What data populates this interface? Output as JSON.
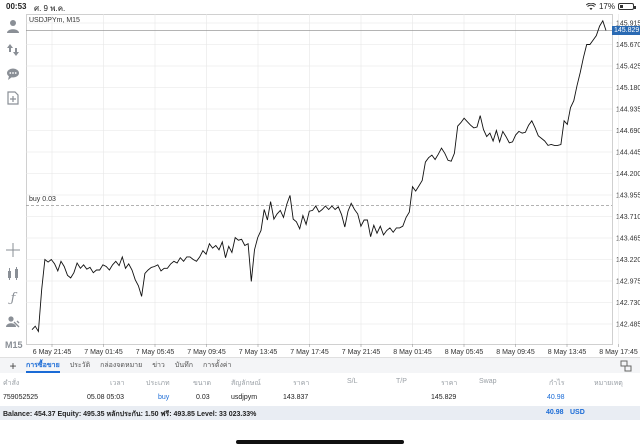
{
  "status_bar": {
    "time": "00:53",
    "date": "ศ. 9 พ.ค.",
    "battery": "17%"
  },
  "toolbar": {
    "icons": [
      "account-icon",
      "trade-icon",
      "chat-icon",
      "new-order-icon",
      "crosshair-icon",
      "indicators-icon",
      "function-icon",
      "objects-icon"
    ],
    "timeframe": "M15"
  },
  "chart": {
    "symbol": "USDJPYm, M15",
    "order_line_label": "buy 0.03",
    "current_price": "145.829",
    "price_ticks": [
      "145.915",
      "145.670",
      "145.425",
      "145.180",
      "144.935",
      "144.690",
      "144.445",
      "144.200",
      "143.955",
      "143.710",
      "143.465",
      "143.220",
      "142.975",
      "142.730",
      "142.485"
    ],
    "time_ticks": [
      "6 May 21:45",
      "7 May 01:45",
      "7 May 05:45",
      "7 May 09:45",
      "7 May 13:45",
      "7 May 17:45",
      "7 May 21:45",
      "8 May 01:45",
      "8 May 05:45",
      "8 May 09:45",
      "8 May 13:45",
      "8 May 17:45"
    ]
  },
  "chart_data": {
    "type": "line",
    "title": "USDJPYm, M15",
    "xlabel": "",
    "ylabel": "",
    "ylim": [
      142.3,
      146.0
    ],
    "grid": true,
    "order_level": 143.837,
    "current_level": 145.829,
    "series": [
      {
        "values": [
          142.42,
          142.46,
          142.4,
          142.88,
          143.22,
          143.19,
          143.22,
          143.17,
          143.09,
          143.2,
          143.14,
          143.04,
          143.01,
          143.07,
          143.18,
          143.12,
          143.16,
          143.11,
          143.13,
          143.07,
          143.1,
          143.1,
          143.16,
          143.14,
          143.1,
          143.16,
          143.2,
          143.15,
          143.25,
          143.12,
          143.17,
          143.1,
          142.99,
          142.92,
          142.8,
          143.06,
          143.1,
          143.13,
          143.14,
          143.16,
          143.09,
          143.12,
          143.12,
          143.17,
          143.2,
          143.18,
          143.24,
          143.2,
          143.25,
          143.25,
          143.22,
          143.2,
          143.25,
          143.32,
          143.28,
          143.4,
          143.35,
          143.38,
          143.33,
          143.42,
          143.24,
          143.37,
          143.3,
          143.47,
          143.44,
          143.45,
          143.38,
          143.4,
          142.97,
          143.33,
          143.47,
          143.55,
          143.79,
          143.67,
          143.88,
          143.68,
          143.74,
          143.78,
          143.7,
          143.85,
          143.95,
          143.68,
          143.65,
          143.57,
          143.72,
          143.62,
          143.77,
          143.78,
          143.83,
          143.76,
          143.79,
          143.83,
          143.79,
          143.83,
          143.79,
          143.82,
          143.73,
          143.59,
          143.77,
          143.86,
          143.79,
          143.74,
          143.6,
          143.67,
          143.67,
          143.48,
          143.61,
          143.52,
          143.6,
          143.5,
          143.55,
          143.58,
          143.53,
          143.58,
          143.58,
          143.6,
          143.7,
          143.76,
          144.05,
          144.0,
          144.06,
          144.12,
          144.33,
          144.38,
          144.41,
          144.36,
          144.42,
          144.49,
          144.43,
          144.35,
          144.34,
          144.43,
          144.74,
          144.78,
          144.83,
          144.79,
          144.75,
          144.72,
          144.73,
          144.86,
          144.7,
          144.62,
          144.66,
          144.57,
          144.69,
          144.56,
          144.68,
          144.62,
          144.55,
          144.56,
          144.64,
          144.68,
          144.66,
          144.67,
          144.75,
          144.8,
          144.72,
          144.63,
          144.6,
          144.57,
          144.52,
          144.53,
          144.52,
          144.52,
          144.53,
          144.8,
          144.76,
          144.95,
          145.03,
          145.2,
          145.35,
          145.52,
          145.67,
          145.67,
          145.72,
          145.77,
          145.88,
          145.94,
          145.83
        ]
      }
    ]
  },
  "tabs": {
    "items": [
      "การซื้อขาย",
      "ประวัติ",
      "กล่องจดหมาย",
      "ข่าว",
      "บันทึก",
      "การตั้งค่า"
    ],
    "active_index": 0
  },
  "table": {
    "headers": {
      "order": "คำสั่ง",
      "time": "เวลา",
      "type": "ประเภท",
      "volume": "ขนาด",
      "symbol": "สัญลักษณ์",
      "price": "ราคา",
      "sl": "S/L",
      "tp": "T/P",
      "price2": "ราคา",
      "swap": "Swap",
      "profit": "กำไร",
      "comment": "หมายเหตุ"
    },
    "row": {
      "order": "759052525",
      "time": "05.08 05:03",
      "type": "buy",
      "volume": "0.03",
      "symbol": "usdjpym",
      "price": "143.837",
      "price2": "145.829",
      "profit": "40.98"
    }
  },
  "footer": {
    "summary": "Balance: 454.37 Equity: 495.35 หลักประกัน: 1.50 ฟรี: 493.85 Level: 33 023.33%",
    "profit": "40.98",
    "currency": "USD"
  },
  "colors": {
    "accent": "#1a6bd6",
    "price_tag": "#2a6ab3",
    "line": "#111111",
    "grid": "#e6e6e6"
  }
}
